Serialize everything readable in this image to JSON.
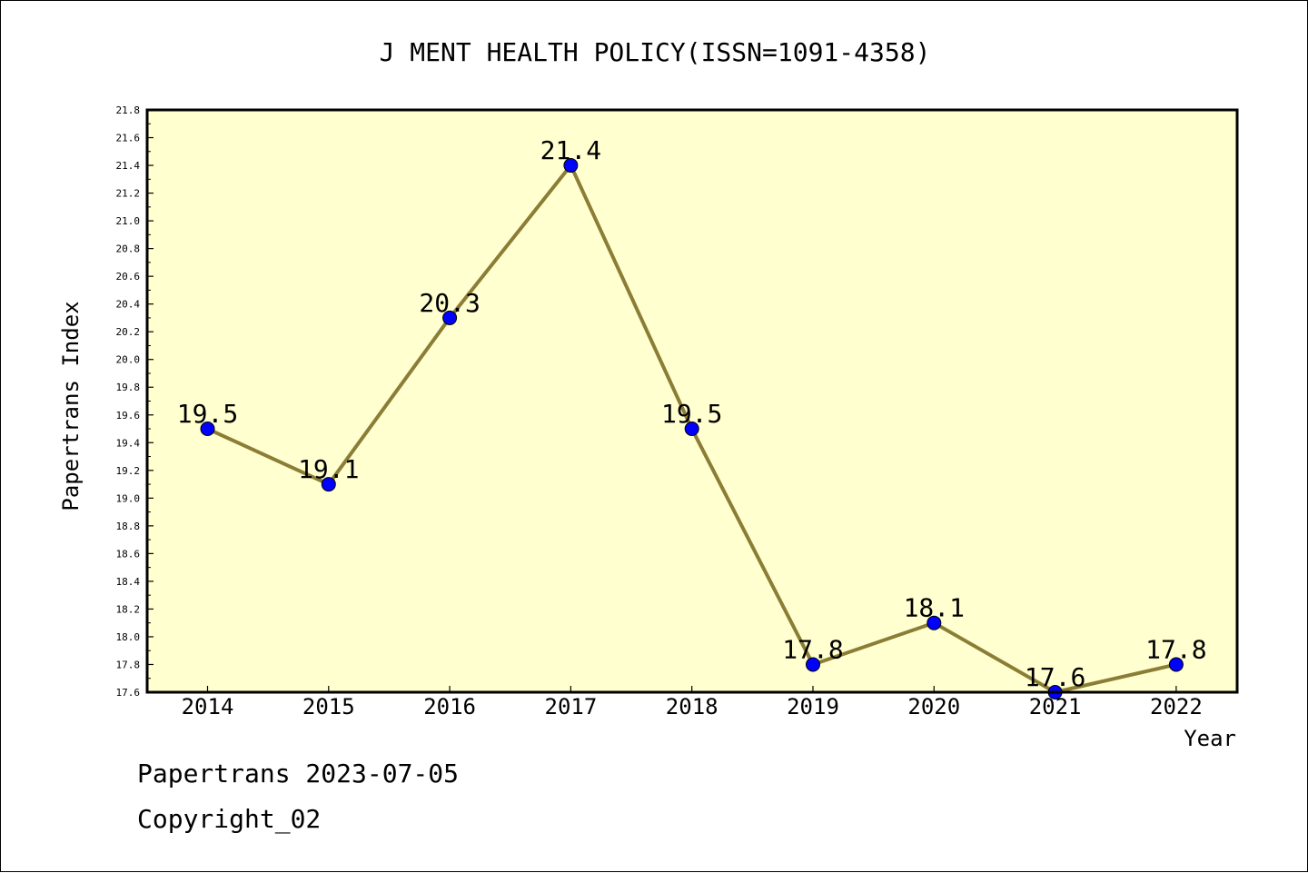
{
  "chart_data": {
    "type": "line",
    "title": "J MENT HEALTH POLICY(ISSN=1091-4358)",
    "xlabel": "Year",
    "ylabel": "Papertrans Index",
    "categories": [
      "2014",
      "2015",
      "2016",
      "2017",
      "2018",
      "2019",
      "2020",
      "2021",
      "2022"
    ],
    "series": [
      {
        "values": [
          19.5,
          19.1,
          20.3,
          21.4,
          19.5,
          17.8,
          18.1,
          17.6,
          17.8
        ],
        "labels": [
          "19.5",
          "19.1",
          "20.3",
          "21.4",
          "19.5",
          "17.8",
          "18.1",
          "17.6",
          "17.8"
        ]
      }
    ],
    "ylim": [
      17.6,
      21.8
    ],
    "yticks": [
      "17.6",
      "17.8",
      "18.0",
      "18.2",
      "18.4",
      "18.6",
      "18.8",
      "19.0",
      "19.2",
      "19.4",
      "19.6",
      "19.8",
      "20.0",
      "20.2",
      "20.4",
      "20.6",
      "20.8",
      "21.0",
      "21.2",
      "21.4",
      "21.6",
      "21.8"
    ],
    "grid": false,
    "colors": {
      "plot_background": "#ffffd0",
      "line": "#8b7d35",
      "marker": "#0000ff"
    }
  },
  "footer": {
    "line1": "Papertrans 2023-07-05",
    "line2": "Copyright_02"
  }
}
